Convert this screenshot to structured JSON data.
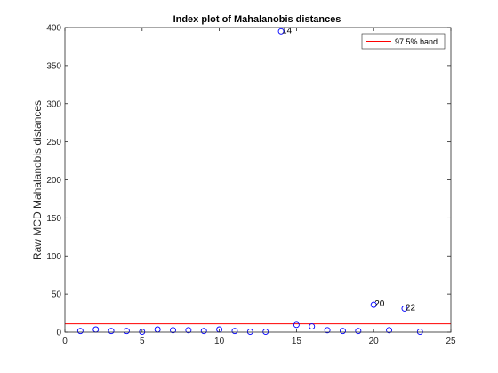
{
  "chart_data": {
    "type": "scatter",
    "title": "Index plot of Mahalanobis distances",
    "xlabel": "",
    "ylabel": "Raw MCD Mahalanobis distances",
    "xlim": [
      0,
      25
    ],
    "ylim": [
      0,
      400
    ],
    "xticks": [
      0,
      5,
      10,
      15,
      20,
      25
    ],
    "yticks": [
      0,
      50,
      100,
      150,
      200,
      250,
      300,
      350,
      400
    ],
    "grid": false,
    "legend_position": "top-right",
    "series": [
      {
        "name": "",
        "marker": "circle",
        "color": "#0000ff",
        "x": [
          1,
          2,
          3,
          4,
          5,
          6,
          7,
          8,
          9,
          10,
          11,
          12,
          13,
          14,
          15,
          16,
          17,
          18,
          19,
          20,
          21,
          22,
          23
        ],
        "y": [
          1.5,
          3.5,
          1.5,
          1.5,
          0.5,
          3.5,
          2.5,
          2.5,
          1.5,
          3.5,
          1.5,
          0.5,
          0.5,
          395,
          9.5,
          7.5,
          2.5,
          1.5,
          1.5,
          36,
          2.5,
          31,
          0.5
        ]
      }
    ],
    "band": {
      "name": "97.5% band",
      "y": 11,
      "color": "#ff0000"
    },
    "annotations": [
      {
        "text": "14",
        "x": 14,
        "y": 395
      },
      {
        "text": "20",
        "x": 20,
        "y": 36
      },
      {
        "text": "22",
        "x": 22,
        "y": 31
      }
    ]
  }
}
